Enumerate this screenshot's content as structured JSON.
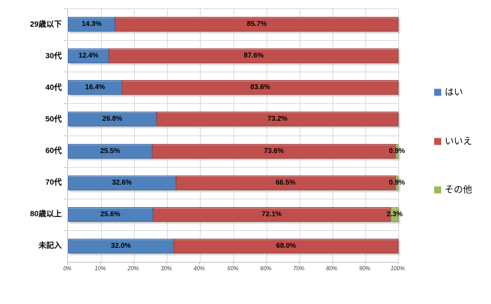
{
  "chart_data": {
    "type": "bar",
    "stacked": true,
    "orientation": "horizontal",
    "title": "",
    "xlabel": "",
    "ylabel": "",
    "xlim": [
      0,
      100
    ],
    "grid": true,
    "legend_position": "right",
    "categories": [
      "29歳以下",
      "30代",
      "40代",
      "50代",
      "60代",
      "70代",
      "80歳以上",
      "未記入"
    ],
    "series": [
      {
        "name": "はい",
        "color": "#4F81BD",
        "values": [
          14.3,
          12.4,
          16.4,
          26.8,
          25.5,
          32.6,
          25.6,
          32.0
        ]
      },
      {
        "name": "いいえ",
        "color": "#C0504D",
        "values": [
          85.7,
          87.6,
          83.6,
          73.2,
          73.6,
          66.5,
          72.1,
          68.0
        ]
      },
      {
        "name": "その他",
        "color": "#9BBB59",
        "values": [
          0,
          0,
          0,
          0,
          0.9,
          0.9,
          2.3,
          0
        ]
      }
    ],
    "data_labels": [
      [
        "14.3%",
        "85.7%",
        ""
      ],
      [
        "12.4%",
        "87.6%",
        ""
      ],
      [
        "16.4%",
        "83.6%",
        ""
      ],
      [
        "26.8%",
        "73.2%",
        ""
      ],
      [
        "25.5%",
        "73.6%",
        "0.9%"
      ],
      [
        "32.6%",
        "66.5%",
        "0.9%"
      ],
      [
        "25.6%",
        "72.1%",
        "2.3%"
      ],
      [
        "32.0%",
        "68.0%",
        ""
      ]
    ],
    "x_ticks": [
      "0%",
      "10%",
      "20%",
      "30%",
      "40%",
      "50%",
      "60%",
      "70%",
      "80%",
      "90%",
      "100%"
    ]
  },
  "legend": {
    "items": [
      {
        "label": "はい",
        "color": "#4F81BD"
      },
      {
        "label": "いいえ",
        "color": "#C0504D"
      },
      {
        "label": "その他",
        "color": "#9BBB59"
      }
    ]
  },
  "colors": {
    "background": "#FFFFFF",
    "gridline": "#D9D9D9",
    "axis_line": "#BFBFBF",
    "tick_label": "#404040",
    "data_label": "#000000"
  }
}
